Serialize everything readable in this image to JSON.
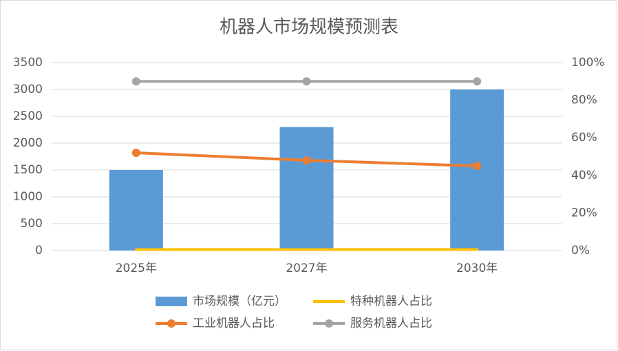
{
  "chart_data": {
    "type": "combo",
    "title": "机器人市场规模预测表",
    "categories": [
      "2025年",
      "2027年",
      "2030年"
    ],
    "series": [
      {
        "name": "市场规模（亿元）",
        "type": "bar",
        "color": "#5b9bd5",
        "values": [
          1500,
          2300,
          3000
        ]
      },
      {
        "name": "特种机器人占比",
        "type": "line",
        "axis": "y2",
        "color": "#ffc000",
        "markers": false,
        "values": [
          0.5,
          0.5,
          0.5
        ]
      },
      {
        "name": "工业机器人占比",
        "type": "line",
        "axis": "y2",
        "color": "#ed7d31",
        "markers": true,
        "values": [
          52,
          48,
          45
        ]
      },
      {
        "name": "服务机器人占比",
        "type": "line",
        "axis": "y2",
        "color": "#a5a5a5",
        "markers": true,
        "values": [
          90,
          90,
          90
        ]
      }
    ],
    "ylim": [
      0,
      3500
    ],
    "yticks": [
      0,
      500,
      1000,
      1500,
      2000,
      2500,
      3000,
      3500
    ],
    "y2lim": [
      0,
      100
    ],
    "y2ticks": [
      {
        "value": 0,
        "label": "0%"
      },
      {
        "value": 20,
        "label": "20%"
      },
      {
        "value": 40,
        "label": "40%"
      },
      {
        "value": 60,
        "label": "60%"
      },
      {
        "value": 80,
        "label": "80%"
      },
      {
        "value": 100,
        "label": "100%"
      }
    ],
    "grid": true,
    "legend_position": "bottom"
  }
}
